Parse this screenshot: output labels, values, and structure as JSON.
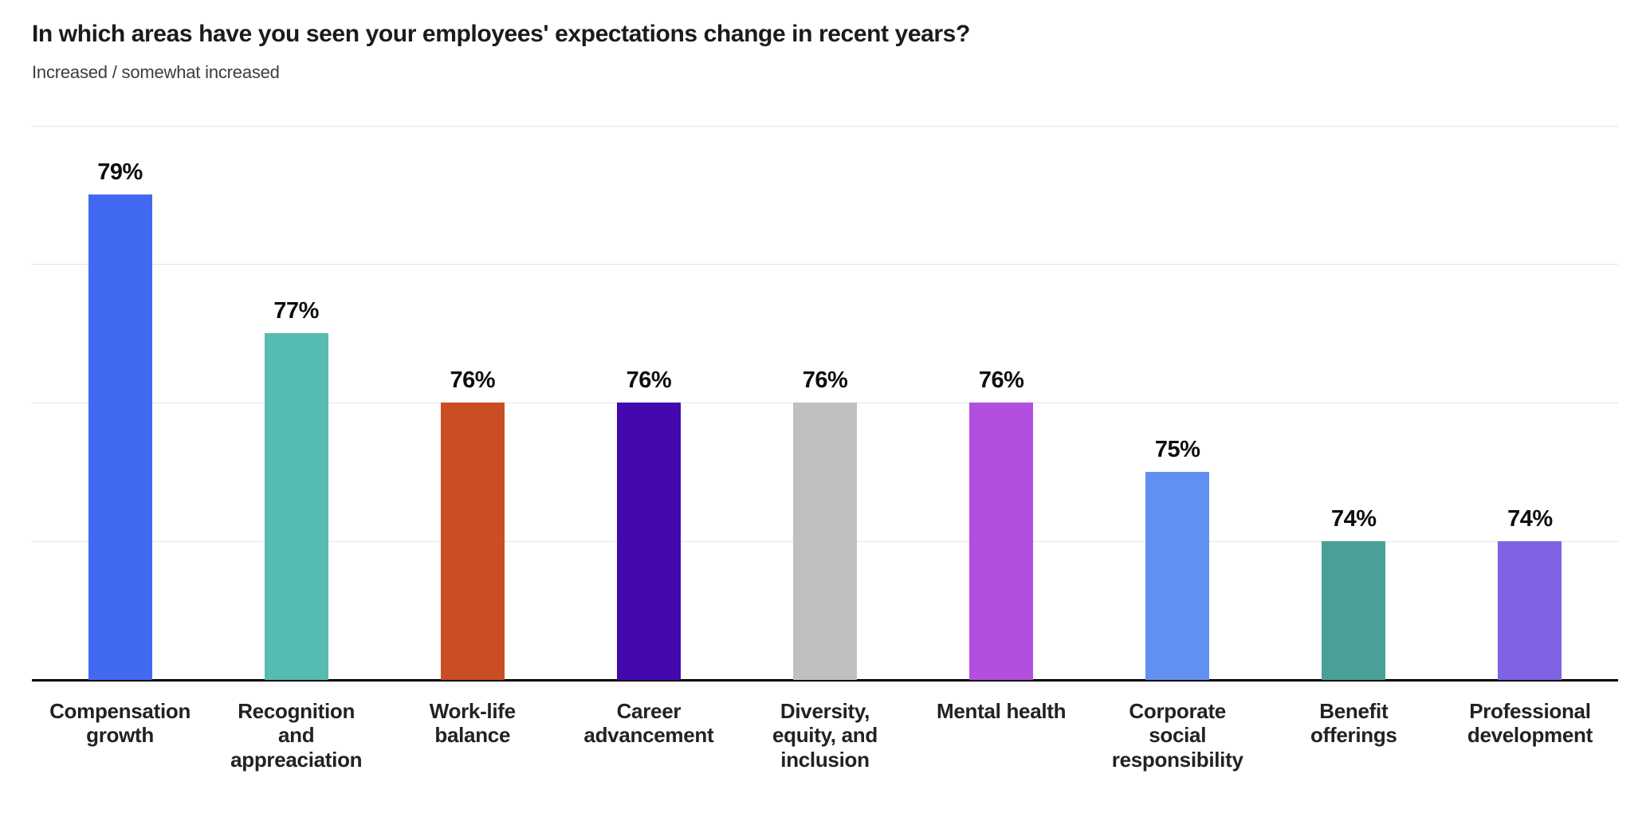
{
  "header": {
    "title": "In which areas have you seen your employees' expectations change in recent years?",
    "subtitle": "Increased / somewhat increased"
  },
  "chart_data": {
    "type": "bar",
    "title": "In which areas have you seen your employees' expectations change in recent years?",
    "subtitle": "Increased / somewhat increased",
    "categories": [
      "Compensation growth",
      "Recognition and appreaciation",
      "Work-life balance",
      "Career advancement",
      "Diversity, equity, and inclusion",
      "Mental health",
      "Corporate social responsibility",
      "Benefit offerings",
      "Professional development"
    ],
    "values": [
      79,
      77,
      76,
      76,
      76,
      76,
      75,
      74,
      74
    ],
    "value_labels": [
      "79%",
      "77%",
      "76%",
      "76%",
      "76%",
      "76%",
      "75%",
      "74%",
      "74%"
    ],
    "bar_colors": [
      "#4169F1",
      "#56BBB1",
      "#CB4D24",
      "#4309AE",
      "#C0C0C0",
      "#B24EE0",
      "#6090F2",
      "#48A096",
      "#7F63E4"
    ],
    "ylim": [
      72,
      80
    ],
    "gridline_values": [
      74,
      76,
      78,
      80
    ],
    "grid": "horizontal",
    "legend": "none",
    "xlabel": "",
    "ylabel": ""
  },
  "colors": {
    "background": "#ffffff",
    "grid": "#e5e5e5",
    "axis": "#000000",
    "title_text": "#1b1b1b",
    "subtitle_text": "#3d3d3d",
    "category_text": "#222222",
    "value_text": "#0d0d0d"
  }
}
